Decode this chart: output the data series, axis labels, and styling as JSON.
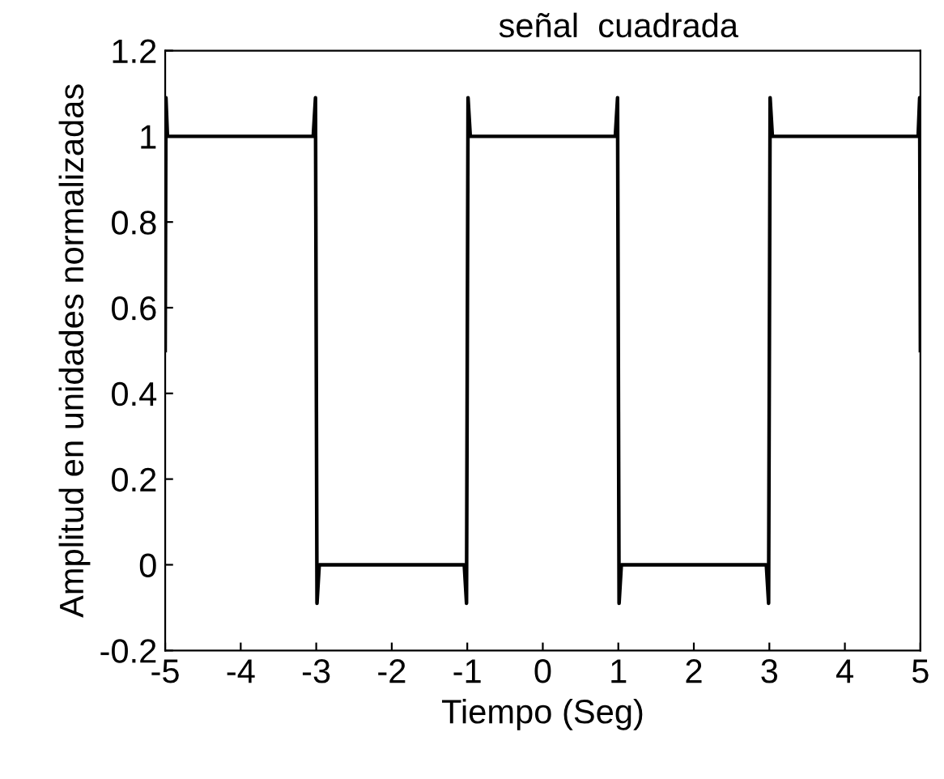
{
  "chart_data": {
    "type": "line",
    "title": "señal  cuadrada",
    "xlabel": "Tiempo (Seg)",
    "ylabel": "Amplitud en unidades normalizadas",
    "x": [
      -5,
      -4.99,
      -4.97,
      -3.04,
      -3.01,
      -3,
      -2.99,
      -2.96,
      -1.04,
      -1.01,
      -1,
      -0.99,
      -0.96,
      0.96,
      0.99,
      1,
      1.01,
      1.04,
      2.96,
      2.99,
      3,
      3.01,
      3.04,
      4.97,
      4.99,
      5
    ],
    "series": [
      {
        "color": "#000000",
        "values": [
          0.5,
          1.09,
          1.0,
          1.0,
          1.09,
          0.5,
          -0.09,
          0.0,
          0.0,
          -0.09,
          0.5,
          1.09,
          1.0,
          1.0,
          1.09,
          0.5,
          -0.09,
          0.0,
          0.0,
          -0.09,
          0.5,
          1.09,
          1.0,
          1.0,
          1.09,
          0.5
        ]
      }
    ],
    "xlim": [
      -5,
      5
    ],
    "ylim": [
      -0.2,
      1.2
    ],
    "xticks": [
      -5,
      -4,
      -3,
      -2,
      -1,
      0,
      1,
      2,
      3,
      4,
      5
    ],
    "yticks": [
      -0.2,
      0,
      0.2,
      0.4,
      0.6,
      0.8,
      1,
      1.2
    ],
    "grid": false,
    "legend": false,
    "marker": "none",
    "line_style": "solid"
  }
}
